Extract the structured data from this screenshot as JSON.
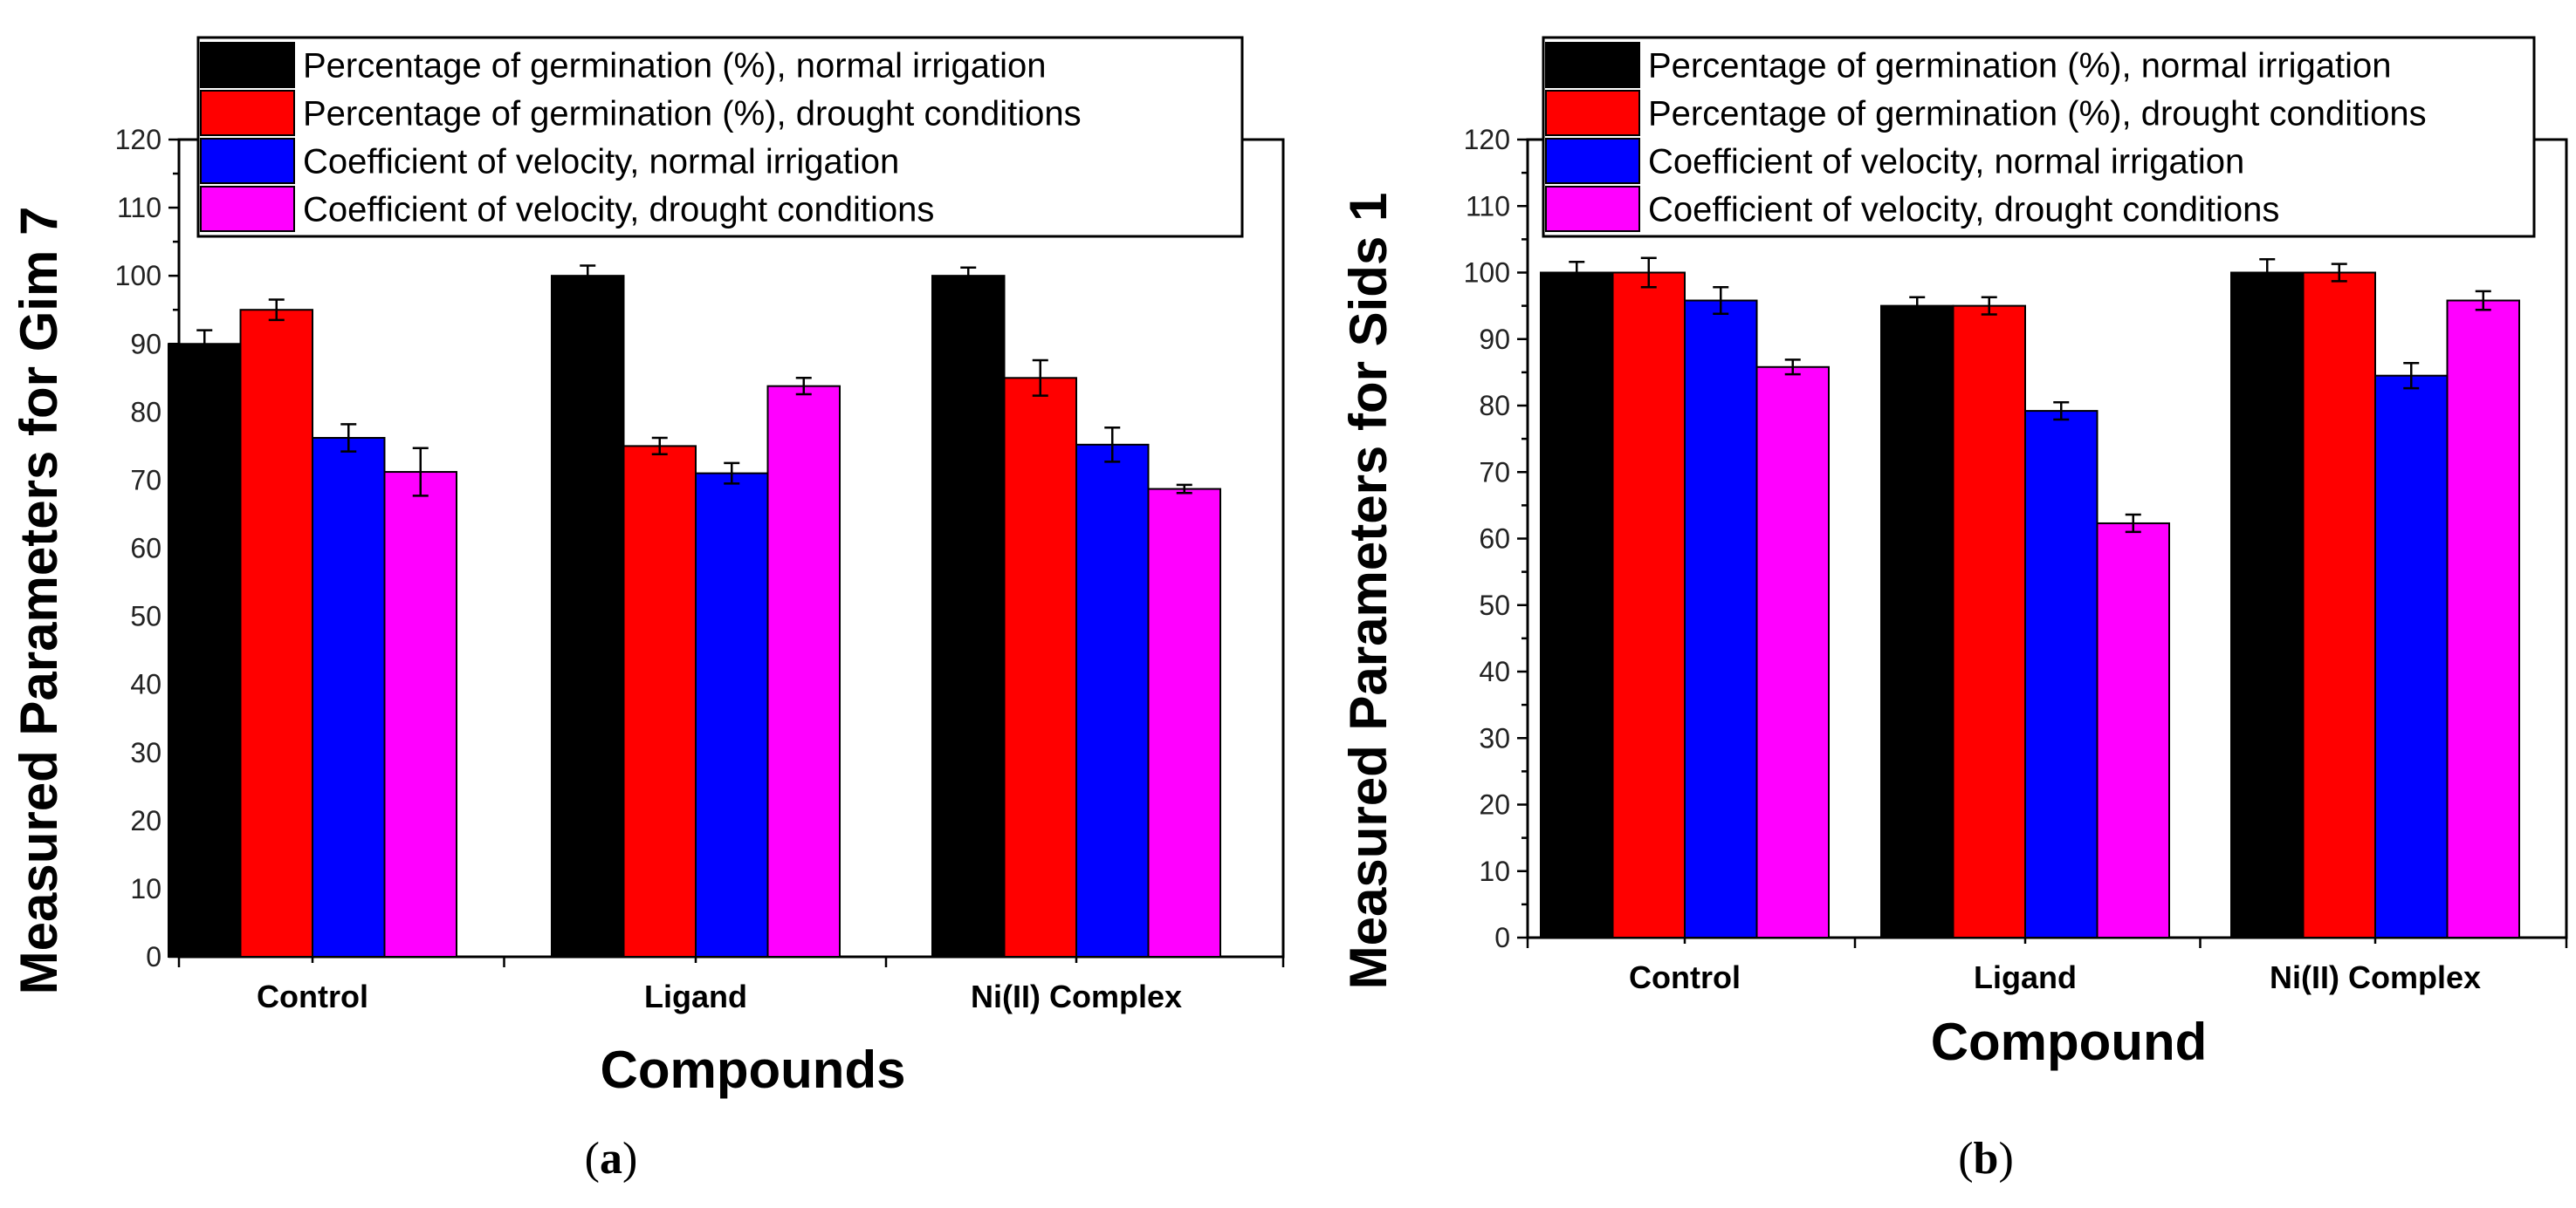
{
  "chart_data": [
    {
      "type": "bar",
      "panel_label": "a",
      "categories": [
        "Control",
        "Ligand",
        "Ni(II) Complex"
      ],
      "xlabel": "Compounds",
      "ylabel": "Measured Parameters for Gim 7",
      "ylim": [
        0,
        120
      ],
      "yticks": [
        0,
        10,
        20,
        30,
        40,
        50,
        60,
        70,
        80,
        90,
        100,
        110,
        120
      ],
      "legend_position": "top",
      "series": [
        {
          "name": "Percentage of germination (%), normal irrigation",
          "color": "#000000",
          "values": [
            90,
            100,
            100
          ],
          "errors": [
            2,
            1.5,
            1.2
          ]
        },
        {
          "name": "Percentage of germination (%), drought conditions",
          "color": "#ff0000",
          "values": [
            95,
            75,
            85
          ],
          "errors": [
            1.5,
            1.2,
            2.6
          ]
        },
        {
          "name": "Coefficient of velocity, normal irrigation",
          "color": "#0000ff",
          "values": [
            76.2,
            71,
            75.2
          ],
          "errors": [
            2,
            1.5,
            2.5
          ]
        },
        {
          "name": "Coefficient of velocity, drought conditions",
          "color": "#ff00ff",
          "values": [
            71.2,
            83.8,
            68.7
          ],
          "errors": [
            3.5,
            1.2,
            0.6
          ]
        }
      ]
    },
    {
      "type": "bar",
      "panel_label": "b",
      "categories": [
        "Control",
        "Ligand",
        "Ni(II) Complex"
      ],
      "xlabel": "Compound",
      "ylabel": "Measured Parameters for Sids 1",
      "ylim": [
        0,
        120
      ],
      "yticks": [
        0,
        10,
        20,
        30,
        40,
        50,
        60,
        70,
        80,
        90,
        100,
        110,
        120
      ],
      "legend_position": "top",
      "series": [
        {
          "name": "Percentage of germination (%), normal irrigation",
          "color": "#000000",
          "values": [
            100,
            95,
            100
          ],
          "errors": [
            1.6,
            1.3,
            2
          ]
        },
        {
          "name": "Percentage of germination (%), drought conditions",
          "color": "#ff0000",
          "values": [
            100,
            95,
            100
          ],
          "errors": [
            2.2,
            1.3,
            1.3
          ]
        },
        {
          "name": "Coefficient of velocity, normal irrigation",
          "color": "#0000ff",
          "values": [
            95.8,
            79.2,
            84.5
          ],
          "errors": [
            2,
            1.3,
            1.9
          ]
        },
        {
          "name": "Coefficient of velocity, drought conditions",
          "color": "#ff00ff",
          "values": [
            85.8,
            62.3,
            95.8
          ],
          "errors": [
            1.1,
            1.3,
            1.4
          ]
        }
      ]
    }
  ]
}
